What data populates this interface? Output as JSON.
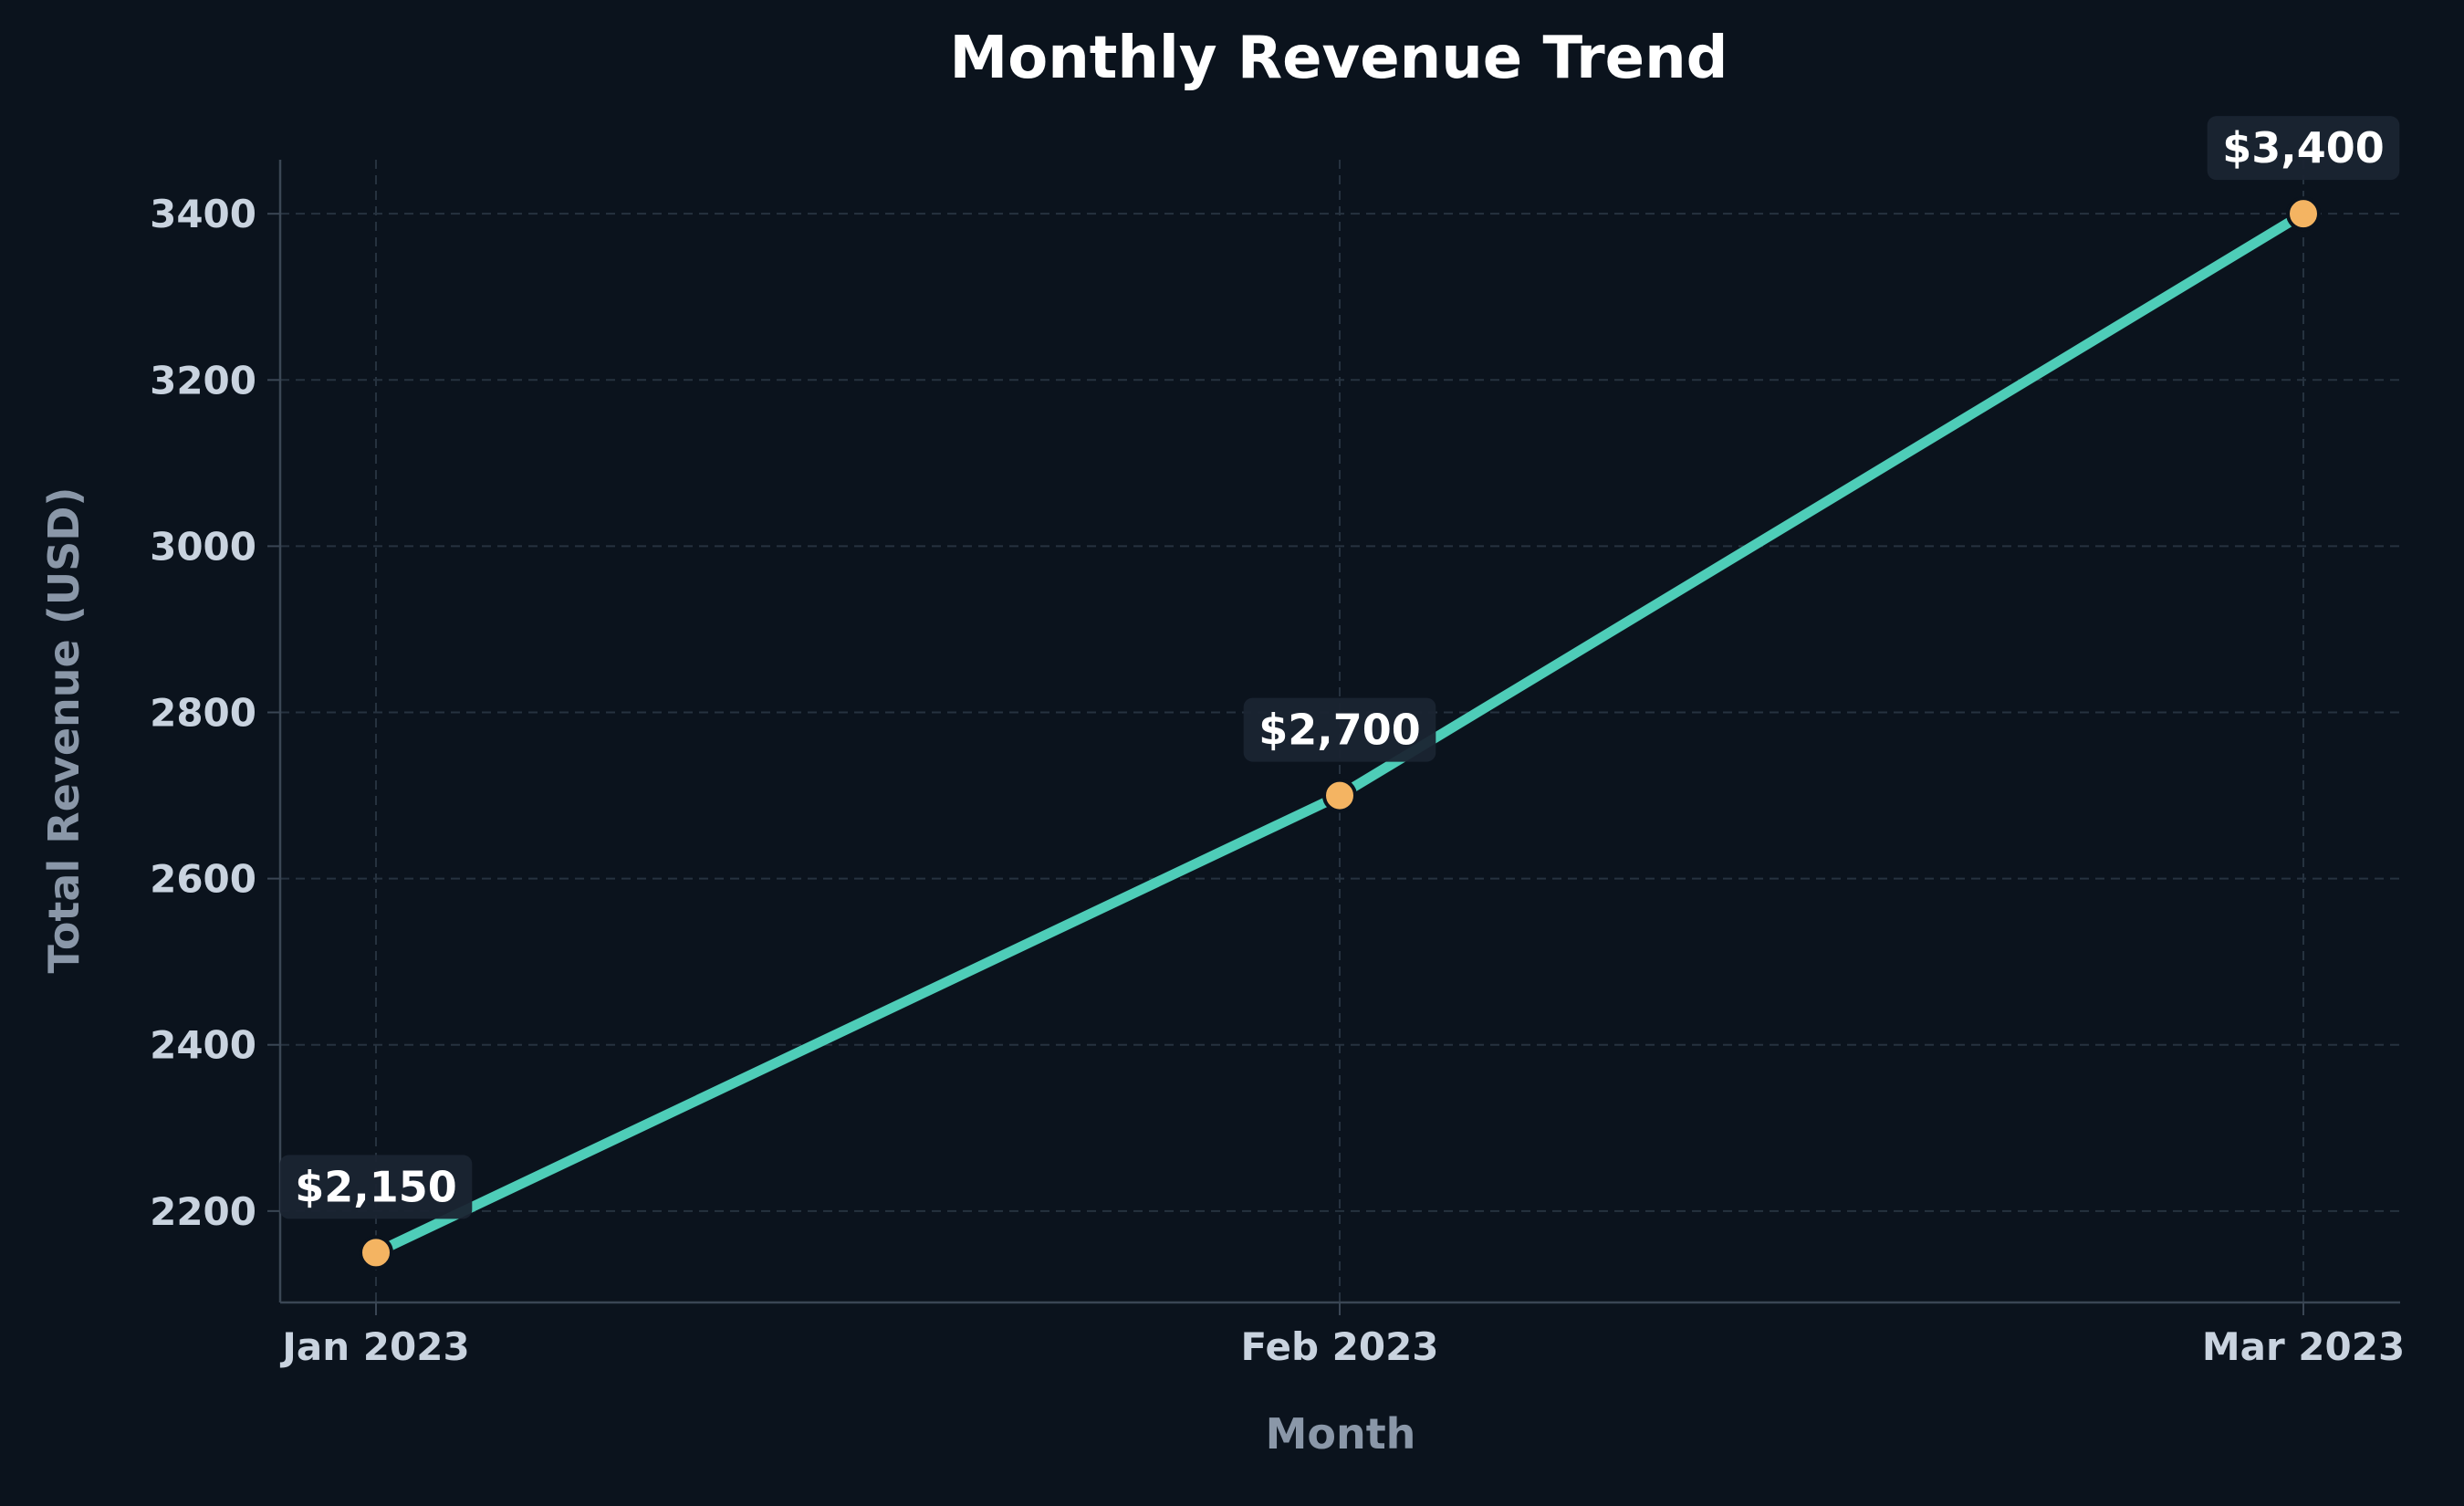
{
  "chart_data": {
    "type": "line",
    "title": "Monthly Revenue Trend",
    "xlabel": "Month",
    "ylabel": "Total Revenue (USD)",
    "categories": [
      "Jan 2023",
      "Feb 2023",
      "Mar 2023"
    ],
    "series": [
      {
        "values": [
          2150,
          2700,
          3400
        ]
      }
    ],
    "data_labels": [
      "$2,150",
      "$2,700",
      "$3,400"
    ],
    "ylim": [
      2090,
      3465
    ],
    "yticks": [
      2200,
      2400,
      2600,
      2800,
      3000,
      3200,
      3400
    ],
    "grid": true,
    "legend": "none"
  },
  "colors": {
    "background": "#0b131d",
    "line": "#4ecdb8",
    "marker_fill": "#f4b462",
    "marker_edge": "#0b131d",
    "grid": "#26323f",
    "axis": "#3a4654",
    "tick_text": "#c9d3df",
    "axis_label_text": "#8a97a8",
    "title_text": "#ffffff",
    "data_label_bg": "#1a2431",
    "data_label_text": "#ffffff"
  }
}
